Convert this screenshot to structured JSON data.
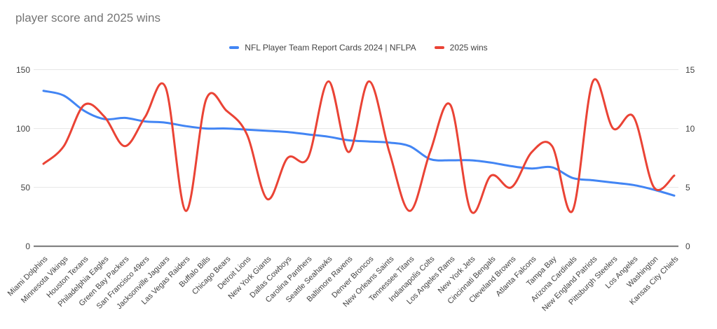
{
  "title": "player score and 2025 wins",
  "legend": [
    {
      "label": "NFL Player Team Report Cards 2024 | NFLPA",
      "color": "#4285F4"
    },
    {
      "label": "2025 wins",
      "color": "#EA4335"
    }
  ],
  "axes": {
    "left_ticks": [
      "150",
      "100",
      "50",
      "0"
    ],
    "right_ticks": [
      "15",
      "10",
      "5",
      "0"
    ]
  },
  "chart_data": {
    "type": "line",
    "smoothing": "smooth",
    "grid": "horizontal",
    "legend_position": "top-center",
    "categories": [
      "Miami Dolphins",
      "Minnesota Vikings",
      "Houston Texans",
      "Philadelphia Eagles",
      "Green Bay Packers",
      "San Francisco 49ers",
      "Jacksonville Jaguars",
      "Las Vegas Raiders",
      "Buffalo Bills",
      "Chicago Bears",
      "Detroit Lions",
      "New York Giants",
      "Dallas Cowboys",
      "Carolina Panthers",
      "Seattle Seahawks",
      "Baltimore Ravens",
      "Denver Broncos",
      "New Orleans Saints",
      "Tennessee Titans",
      "Indianapolis Colts",
      "Los Angeles Rams",
      "New York Jets",
      "Cincinnati Bengals",
      "Cleveland Browns",
      "Atlanta Falcons",
      "Tampa Bay",
      "Arizona Cardinals",
      "New England Patriots",
      "Pittsburgh Steelers",
      "Los Angeles",
      "Washington",
      "Kansas City Chiefs"
    ],
    "series": [
      {
        "name": "NFL Player Team Report Cards 2024 | NFLPA",
        "color": "#4285F4",
        "axis": "left",
        "ylim": [
          0,
          150
        ],
        "values": [
          132,
          128,
          115,
          108,
          109,
          106,
          105,
          102,
          100,
          100,
          99,
          98,
          97,
          95,
          93,
          90,
          89,
          88,
          85,
          74,
          73,
          73,
          71,
          68,
          66,
          67,
          58,
          56,
          54,
          52,
          48,
          43
        ]
      },
      {
        "name": "2025 wins",
        "color": "#EA4335",
        "axis": "right",
        "ylim": [
          0,
          15
        ],
        "values": [
          7,
          8.5,
          12,
          11,
          8.5,
          11,
          13.5,
          3,
          12.5,
          11.5,
          9.5,
          4,
          7.5,
          7.5,
          14,
          8,
          14,
          8,
          3,
          8,
          12,
          3,
          6,
          5,
          8,
          8.5,
          3,
          14,
          10,
          11,
          5,
          6
        ]
      }
    ],
    "title": "player score and 2025 wins",
    "xlabel": "",
    "ylabel": "",
    "gridline_color": "#e6e6e6",
    "baseline_color": "#757575"
  }
}
